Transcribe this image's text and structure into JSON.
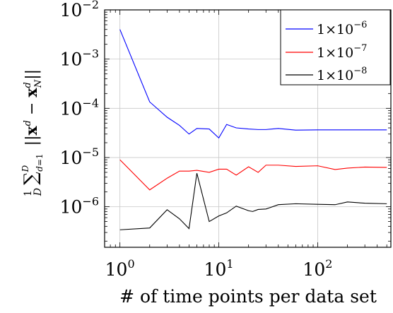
{
  "chart_data": {
    "type": "line",
    "title": "",
    "xlabel": "# of time points per data set",
    "ylabel": "1/D Σ_{d=1}^{D} ||x^d − x_N^d||",
    "x_scale": "log",
    "y_scale": "log",
    "xlim": [
      0.7,
      550
    ],
    "ylim": [
      1.5e-07,
      0.01
    ],
    "grid": true,
    "legend_position": "top-right",
    "x_ticks": [
      {
        "value": 1,
        "base": "10",
        "exp": "0"
      },
      {
        "value": 10,
        "base": "10",
        "exp": "1"
      },
      {
        "value": 100,
        "base": "10",
        "exp": "2"
      }
    ],
    "y_ticks": [
      {
        "value": 1e-06,
        "base": "10",
        "exp": "−6"
      },
      {
        "value": 1e-05,
        "base": "10",
        "exp": "−5"
      },
      {
        "value": 0.0001,
        "base": "10",
        "exp": "−4"
      },
      {
        "value": 0.001,
        "base": "10",
        "exp": "−3"
      },
      {
        "value": 0.01,
        "base": "10",
        "exp": "−2"
      }
    ],
    "series": [
      {
        "name": "1×10^−6",
        "legend_base": "1×10",
        "legend_exp": "−6",
        "color": "#0000ff",
        "x": [
          1,
          2,
          3,
          4,
          5,
          6,
          8,
          10,
          12,
          15,
          20,
          25,
          30,
          40,
          60,
          100,
          150,
          200,
          300,
          500
        ],
        "y": [
          0.004,
          0.000135,
          6.6e-05,
          4.5e-05,
          3e-05,
          3.9e-05,
          3.8e-05,
          2.5e-05,
          4.7e-05,
          4e-05,
          3.8e-05,
          3.7e-05,
          3.7e-05,
          3.9e-05,
          3.6e-05,
          3.65e-05,
          3.65e-05,
          3.65e-05,
          3.65e-05,
          3.65e-05
        ]
      },
      {
        "name": "1×10^−7",
        "legend_base": "1×10",
        "legend_exp": "−7",
        "color": "#ff0000",
        "x": [
          1,
          2,
          3,
          4,
          5,
          6,
          8,
          10,
          12,
          15,
          20,
          25,
          30,
          40,
          60,
          100,
          150,
          200,
          300,
          500
        ],
        "y": [
          9e-06,
          2.2e-06,
          3.8e-06,
          5.3e-06,
          5.3e-06,
          5.5e-06,
          5e-06,
          5.8e-06,
          5.8e-06,
          4.4e-06,
          6.5e-06,
          5e-06,
          7e-06,
          7e-06,
          6.6e-06,
          6.8e-06,
          5.7e-06,
          6.1e-06,
          6.4e-06,
          6.3e-06
        ]
      },
      {
        "name": "1×10^−8",
        "legend_base": "1×10",
        "legend_exp": "−8",
        "color": "#000000",
        "x": [
          1,
          2,
          3,
          4,
          5,
          6,
          8,
          10,
          12,
          15,
          20,
          22,
          25,
          30,
          40,
          60,
          100,
          150,
          200,
          300,
          500
        ],
        "y": [
          3.4e-07,
          3.7e-07,
          8.7e-07,
          5.7e-07,
          3.6e-07,
          4.8e-06,
          5e-07,
          6.5e-07,
          7.5e-07,
          1.03e-06,
          8.3e-07,
          8e-07,
          8.8e-07,
          9e-07,
          1.1e-06,
          1.15e-06,
          1.12e-06,
          1.1e-06,
          1.25e-06,
          1.18e-06,
          1.15e-06
        ]
      }
    ]
  }
}
